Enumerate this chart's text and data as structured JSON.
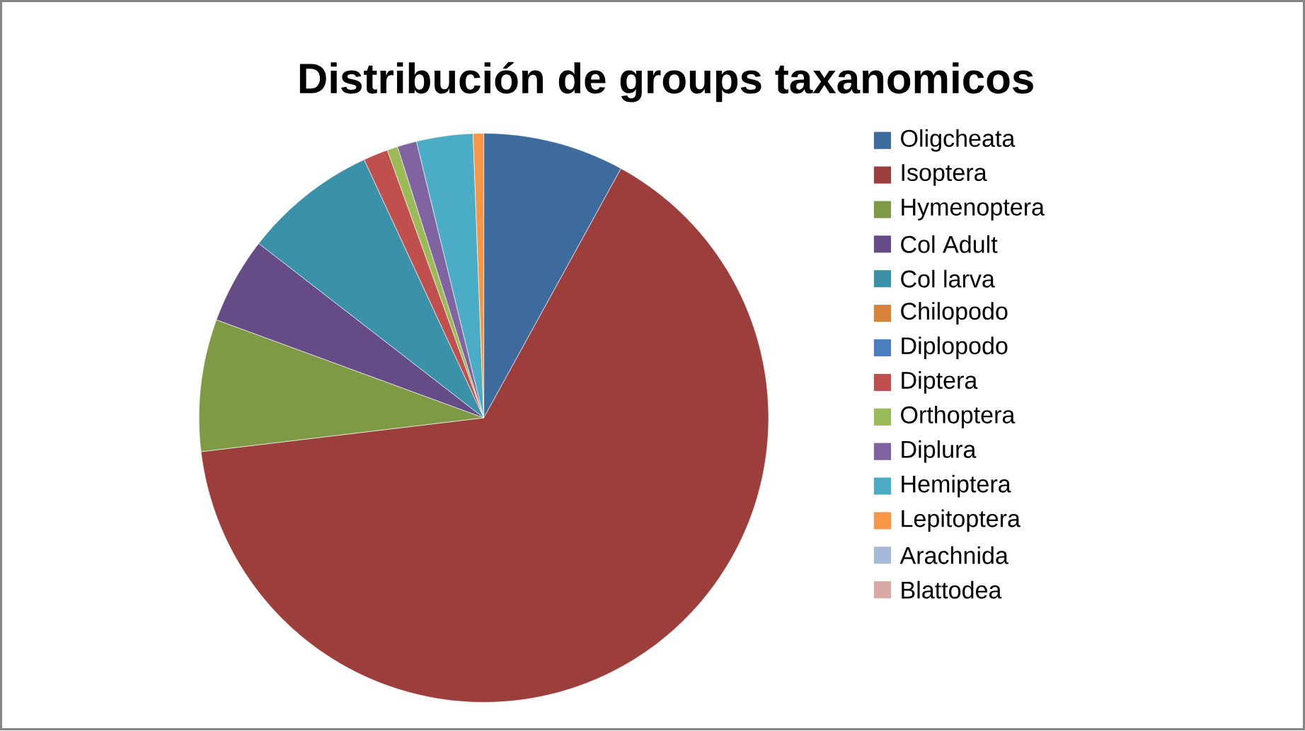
{
  "chart_data": {
    "type": "pie",
    "title": "Distribución de groups taxanomicos",
    "categories": [
      "Oligcheata",
      "Isoptera",
      "Hymenoptera",
      "Col Adult",
      "Col larva",
      "Chilopodo",
      "Diplopodo",
      "Diptera",
      "Orthoptera",
      "Diplura",
      "Hemiptera",
      "Lepitoptera",
      "Arachnida",
      "Blattodea"
    ],
    "values": [
      8.0,
      65.1,
      7.5,
      4.9,
      7.6,
      0,
      0,
      1.4,
      0.6,
      1.1,
      3.2,
      0.6,
      0,
      0
    ],
    "colors": [
      "#3e6b9e",
      "#9c3e3c",
      "#7f9a44",
      "#654c86",
      "#3b91a8",
      "#d9833a",
      "#4a7ebf",
      "#c0504d",
      "#9bbb59",
      "#8064a2",
      "#4bacc6",
      "#f79646",
      "#a5b9d9",
      "#d9a9a8"
    ],
    "legend": "right"
  }
}
